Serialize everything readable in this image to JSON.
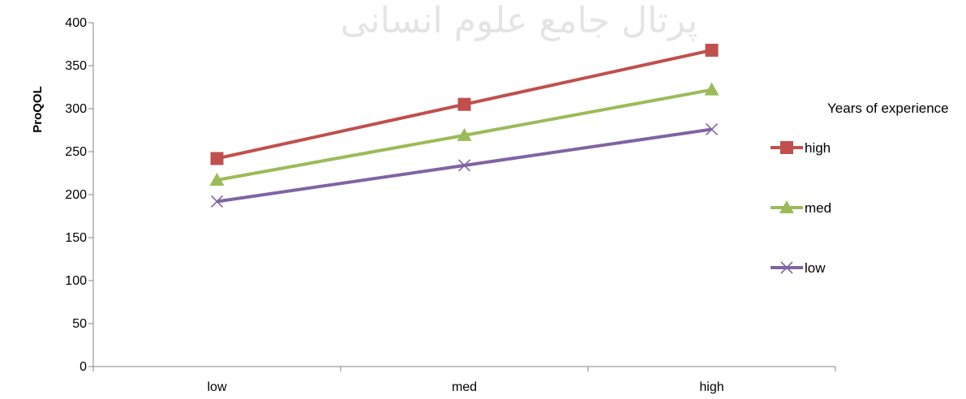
{
  "watermark": {
    "text": "پرتال جامع علوم انسانی"
  },
  "chart_data": {
    "type": "line",
    "categories": [
      "low",
      "med",
      "high"
    ],
    "series": [
      {
        "name": "high",
        "values": [
          242,
          305,
          368
        ],
        "color": "#C0504D",
        "marker": "square"
      },
      {
        "name": "med",
        "values": [
          217,
          269,
          322
        ],
        "color": "#9BBB59",
        "marker": "triangle"
      },
      {
        "name": "low",
        "values": [
          192,
          234,
          276
        ],
        "color": "#8064A2",
        "marker": "x"
      }
    ],
    "title": "",
    "xlabel": "",
    "ylabel": "ProQOL",
    "ylim": [
      0,
      400
    ],
    "yticks": [
      0,
      50,
      100,
      150,
      200,
      250,
      300,
      350,
      400
    ],
    "grid": false,
    "legend": {
      "title": "Years of experience",
      "position": "right"
    }
  }
}
